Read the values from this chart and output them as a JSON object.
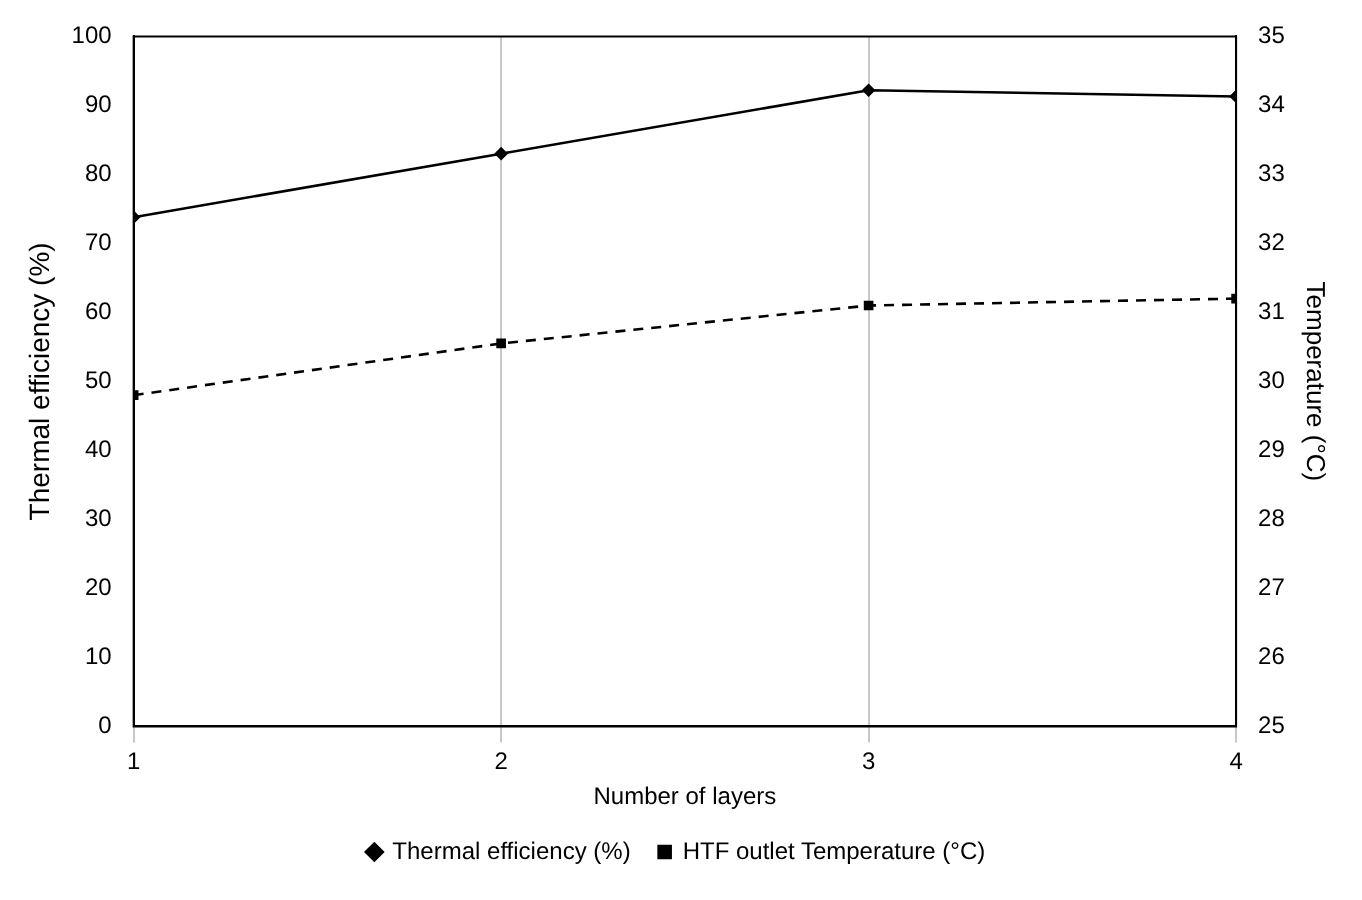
{
  "chart_data": {
    "type": "line",
    "xlabel": "Number of layers",
    "ylabel": "Thermal efficiency (%)",
    "y2label": "Temperature (°C)",
    "x": [
      1,
      2,
      3,
      4
    ],
    "xlim": [
      1,
      4
    ],
    "xticks": [
      1,
      2,
      3,
      4
    ],
    "ylim": [
      0,
      100
    ],
    "yticks": [
      0,
      10,
      20,
      30,
      40,
      50,
      60,
      70,
      80,
      90,
      100
    ],
    "y2lim": [
      25,
      35
    ],
    "y2ticks": [
      25,
      26,
      27,
      28,
      29,
      30,
      31,
      32,
      33,
      34,
      35
    ],
    "grid": "x",
    "legend": "bottom",
    "series": [
      {
        "name": "Thermal efficiency (%)",
        "color": "#000000",
        "values": [
          73.8,
          83,
          92.2,
          91.3
        ],
        "marker": "diamond",
        "line_style": "solid"
      },
      {
        "name": "HTF outlet Temperature (°C)",
        "color": "#000000",
        "values": [
          29.8,
          30.55,
          31.1,
          31.2
        ],
        "axis": "y2",
        "marker": "square",
        "line_style": "dashed"
      }
    ]
  }
}
